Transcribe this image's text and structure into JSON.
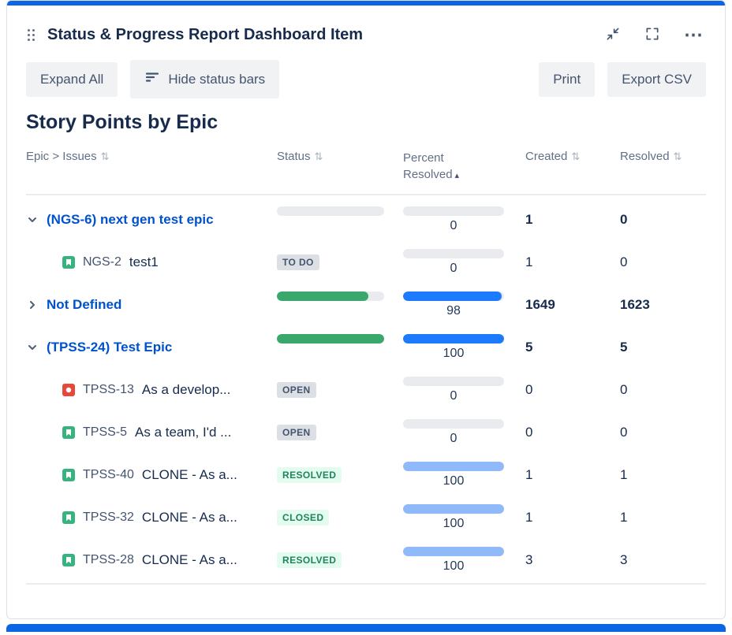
{
  "gadget": {
    "title": "Status & Progress Report Dashboard Item",
    "toolbar": {
      "expand_all": "Expand All",
      "hide_status_bars": "Hide status bars",
      "print": "Print",
      "export_csv": "Export CSV"
    },
    "section_title": "Story Points by Epic"
  },
  "icons": {
    "sort": "⇅",
    "sort_asc": "▴",
    "more": "⋯"
  },
  "table": {
    "columns": {
      "name": "Epic > Issues",
      "status": "Status",
      "percent": "Percent Resolved",
      "created": "Created",
      "resolved": "Resolved"
    },
    "rows": [
      {
        "type": "epic",
        "expanded": true,
        "label": "(NGS-6) next gen test epic",
        "status_fill_pct": 0,
        "percent_fill_pct": 0,
        "percent_value": "0",
        "created": "1",
        "resolved": "0"
      },
      {
        "type": "issue",
        "icon": "story",
        "key": "NGS-2",
        "summary": "test1",
        "status": "TO DO",
        "status_variant": "gray",
        "percent_fill_pct": 0,
        "percent_value": "0",
        "created": "1",
        "resolved": "0"
      },
      {
        "type": "epic",
        "expanded": false,
        "label": "Not Defined",
        "status_fill_pct": 85,
        "percent_fill_pct": 98,
        "percent_value": "98",
        "created": "1649",
        "resolved": "1623"
      },
      {
        "type": "epic",
        "expanded": true,
        "label": "(TPSS-24) Test Epic",
        "status_fill_pct": 100,
        "percent_fill_pct": 100,
        "percent_value": "100",
        "created": "5",
        "resolved": "5"
      },
      {
        "type": "issue",
        "icon": "bug",
        "key": "TPSS-13",
        "summary": "As a develop...",
        "status": "OPEN",
        "status_variant": "gray",
        "percent_fill_pct": 0,
        "percent_value": "0",
        "created": "0",
        "resolved": "0"
      },
      {
        "type": "issue",
        "icon": "story",
        "key": "TPSS-5",
        "summary": "As a team, I'd ...",
        "status": "OPEN",
        "status_variant": "gray",
        "percent_fill_pct": 0,
        "percent_value": "0",
        "created": "0",
        "resolved": "0"
      },
      {
        "type": "issue",
        "icon": "story",
        "key": "TPSS-40",
        "summary": "CLONE - As a...",
        "status": "RESOLVED",
        "status_variant": "green",
        "percent_fill_pct": 100,
        "percent_value": "100",
        "created": "1",
        "resolved": "1"
      },
      {
        "type": "issue",
        "icon": "story",
        "key": "TPSS-32",
        "summary": "CLONE - As a...",
        "status": "CLOSED",
        "status_variant": "green",
        "percent_fill_pct": 100,
        "percent_value": "100",
        "created": "1",
        "resolved": "1"
      },
      {
        "type": "issue",
        "icon": "story",
        "key": "TPSS-28",
        "summary": "CLONE - As a...",
        "status": "RESOLVED",
        "status_variant": "green",
        "percent_fill_pct": 100,
        "percent_value": "100",
        "created": "3",
        "resolved": "3"
      }
    ]
  },
  "colors": {
    "accent_blue": "#0C66E4",
    "link_blue": "#0052CC",
    "bar_green": "#3AA76D",
    "bar_blue": "#1D7AFC",
    "bar_light_blue": "#8FB9F8",
    "bar_track": "#E9EBEE",
    "badge_gray_bg": "#DCDFE4",
    "badge_green_bg": "#E3FCEF",
    "badge_green_text": "#1F845A"
  }
}
